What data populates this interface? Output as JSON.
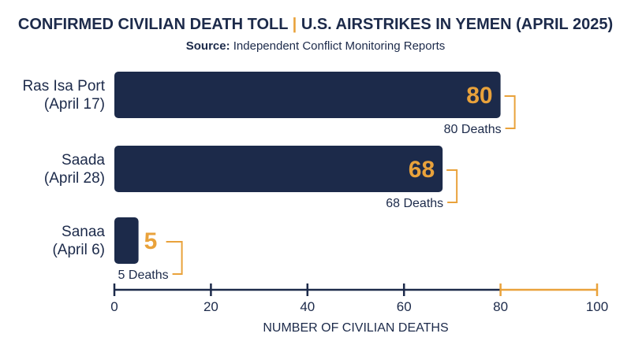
{
  "header": {
    "title_left": "CONFIRMED CIVILIAN DEATH TOLL",
    "title_sep": "|",
    "title_right": "U.S. AIRSTRIKES IN YEMEN (APRIL 2025)",
    "source_label": "Source:",
    "source_text": "Independent Conflict Monitoring Reports"
  },
  "chart_data": {
    "type": "bar",
    "orientation": "horizontal",
    "categories": [
      [
        "Ras Isa Port",
        "(April 17)"
      ],
      [
        "Saada",
        "(April 28)"
      ],
      [
        "Sanaa",
        "(April 6)"
      ]
    ],
    "values": [
      80,
      68,
      5
    ],
    "value_labels": [
      "80",
      "68",
      "5"
    ],
    "annotations": [
      "80 Deaths",
      "68 Deaths",
      "5 Deaths"
    ],
    "xlim": [
      0,
      100
    ],
    "xticks": [
      0,
      20,
      40,
      60,
      80,
      100
    ],
    "xlabel": "NUMBER OF CIVILIAN DEATHS",
    "grid": false,
    "colors": {
      "bar": "#1c2a4a",
      "accent": "#e9a23b",
      "text": "#1c2a4a"
    }
  }
}
